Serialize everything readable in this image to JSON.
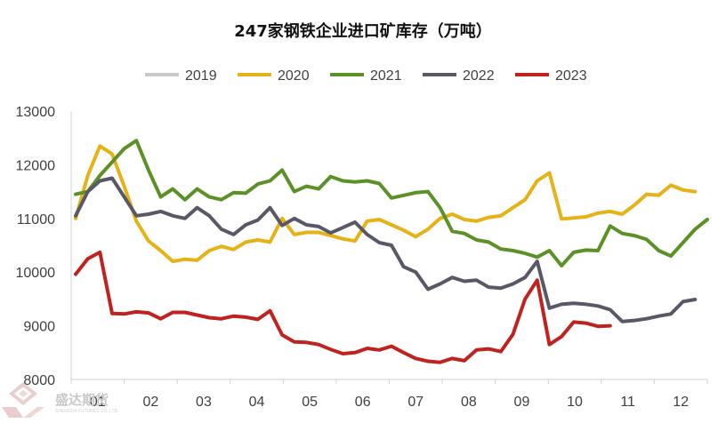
{
  "chart_data": {
    "type": "line",
    "title": "247家钢铁企业进口矿库存（万吨）",
    "xlabel": "",
    "ylabel": "",
    "ylim": [
      8000,
      13000
    ],
    "yticks": [
      8000,
      9000,
      10000,
      11000,
      12000,
      13000
    ],
    "x_tick_labels": [
      "01",
      "02",
      "03",
      "04",
      "05",
      "06",
      "07",
      "08",
      "09",
      "10",
      "11",
      "12"
    ],
    "week_range": [
      1,
      53
    ],
    "legend_position": "top-center",
    "grid": false,
    "series": [
      {
        "name": "2019",
        "color": "#c8c8c8",
        "points": []
      },
      {
        "name": "2020",
        "color": "#e5b217",
        "points": [
          [
            1,
            11000
          ],
          [
            2,
            11800
          ],
          [
            3,
            12350
          ],
          [
            4,
            12200
          ],
          [
            5,
            11600
          ],
          [
            6,
            10950
          ],
          [
            7,
            10580
          ],
          [
            8,
            10400
          ],
          [
            9,
            10200
          ],
          [
            10,
            10240
          ],
          [
            11,
            10220
          ],
          [
            12,
            10400
          ],
          [
            13,
            10480
          ],
          [
            14,
            10420
          ],
          [
            15,
            10560
          ],
          [
            16,
            10600
          ],
          [
            17,
            10560
          ],
          [
            18,
            11000
          ],
          [
            19,
            10700
          ],
          [
            20,
            10740
          ],
          [
            21,
            10740
          ],
          [
            22,
            10680
          ],
          [
            23,
            10620
          ],
          [
            24,
            10580
          ],
          [
            25,
            10950
          ],
          [
            26,
            10980
          ],
          [
            27,
            10880
          ],
          [
            28,
            10780
          ],
          [
            29,
            10660
          ],
          [
            30,
            10800
          ],
          [
            31,
            11000
          ],
          [
            32,
            11080
          ],
          [
            33,
            10980
          ],
          [
            34,
            10950
          ],
          [
            35,
            11020
          ],
          [
            36,
            11050
          ],
          [
            37,
            11200
          ],
          [
            38,
            11350
          ],
          [
            39,
            11700
          ],
          [
            40,
            11850
          ],
          [
            41,
            10990
          ],
          [
            42,
            11010
          ],
          [
            43,
            11030
          ],
          [
            44,
            11100
          ],
          [
            45,
            11130
          ],
          [
            46,
            11080
          ],
          [
            47,
            11250
          ],
          [
            48,
            11450
          ],
          [
            49,
            11430
          ],
          [
            50,
            11620
          ],
          [
            51,
            11530
          ],
          [
            52,
            11500
          ]
        ]
      },
      {
        "name": "2021",
        "color": "#5c9128",
        "points": [
          [
            1,
            11450
          ],
          [
            2,
            11500
          ],
          [
            3,
            11800
          ],
          [
            4,
            12050
          ],
          [
            5,
            12300
          ],
          [
            6,
            12450
          ],
          [
            7,
            11900
          ],
          [
            8,
            11400
          ],
          [
            9,
            11550
          ],
          [
            10,
            11350
          ],
          [
            11,
            11550
          ],
          [
            12,
            11400
          ],
          [
            13,
            11350
          ],
          [
            14,
            11480
          ],
          [
            15,
            11470
          ],
          [
            16,
            11640
          ],
          [
            17,
            11700
          ],
          [
            18,
            11900
          ],
          [
            19,
            11500
          ],
          [
            20,
            11600
          ],
          [
            21,
            11550
          ],
          [
            22,
            11780
          ],
          [
            23,
            11700
          ],
          [
            24,
            11680
          ],
          [
            25,
            11700
          ],
          [
            26,
            11650
          ],
          [
            27,
            11380
          ],
          [
            28,
            11430
          ],
          [
            29,
            11480
          ],
          [
            30,
            11500
          ],
          [
            31,
            11200
          ],
          [
            32,
            10760
          ],
          [
            33,
            10720
          ],
          [
            34,
            10600
          ],
          [
            35,
            10560
          ],
          [
            36,
            10430
          ],
          [
            37,
            10400
          ],
          [
            38,
            10350
          ],
          [
            39,
            10280
          ],
          [
            40,
            10400
          ],
          [
            41,
            10120
          ],
          [
            42,
            10370
          ],
          [
            43,
            10410
          ],
          [
            44,
            10400
          ],
          [
            45,
            10860
          ],
          [
            46,
            10720
          ],
          [
            47,
            10680
          ],
          [
            48,
            10610
          ],
          [
            49,
            10400
          ],
          [
            50,
            10300
          ],
          [
            51,
            10550
          ],
          [
            52,
            10800
          ],
          [
            53,
            10980
          ]
        ]
      },
      {
        "name": "2022",
        "color": "#5a5867",
        "points": [
          [
            1,
            11050
          ],
          [
            2,
            11500
          ],
          [
            3,
            11700
          ],
          [
            4,
            11750
          ],
          [
            5,
            11400
          ],
          [
            6,
            11050
          ],
          [
            7,
            11080
          ],
          [
            8,
            11130
          ],
          [
            9,
            11050
          ],
          [
            10,
            11000
          ],
          [
            11,
            11200
          ],
          [
            12,
            11050
          ],
          [
            13,
            10800
          ],
          [
            14,
            10700
          ],
          [
            15,
            10880
          ],
          [
            16,
            10970
          ],
          [
            17,
            11200
          ],
          [
            18,
            10870
          ],
          [
            19,
            11000
          ],
          [
            20,
            10880
          ],
          [
            21,
            10850
          ],
          [
            22,
            10730
          ],
          [
            23,
            10830
          ],
          [
            24,
            10930
          ],
          [
            25,
            10700
          ],
          [
            26,
            10550
          ],
          [
            27,
            10500
          ],
          [
            28,
            10100
          ],
          [
            29,
            10000
          ],
          [
            30,
            9680
          ],
          [
            31,
            9780
          ],
          [
            32,
            9900
          ],
          [
            33,
            9830
          ],
          [
            34,
            9850
          ],
          [
            35,
            9720
          ],
          [
            36,
            9700
          ],
          [
            37,
            9780
          ],
          [
            38,
            9900
          ],
          [
            39,
            10200
          ],
          [
            40,
            9330
          ],
          [
            41,
            9400
          ],
          [
            42,
            9420
          ],
          [
            43,
            9400
          ],
          [
            44,
            9370
          ],
          [
            45,
            9300
          ],
          [
            46,
            9080
          ],
          [
            47,
            9100
          ],
          [
            48,
            9130
          ],
          [
            49,
            9180
          ],
          [
            50,
            9220
          ],
          [
            51,
            9450
          ],
          [
            52,
            9490
          ]
        ]
      },
      {
        "name": "2023",
        "color": "#c0231f",
        "points": [
          [
            1,
            9960
          ],
          [
            2,
            10250
          ],
          [
            3,
            10370
          ],
          [
            4,
            9230
          ],
          [
            5,
            9220
          ],
          [
            6,
            9260
          ],
          [
            7,
            9240
          ],
          [
            8,
            9130
          ],
          [
            9,
            9250
          ],
          [
            10,
            9250
          ],
          [
            11,
            9200
          ],
          [
            12,
            9150
          ],
          [
            13,
            9130
          ],
          [
            14,
            9180
          ],
          [
            15,
            9160
          ],
          [
            16,
            9120
          ],
          [
            17,
            9280
          ],
          [
            18,
            8830
          ],
          [
            19,
            8700
          ],
          [
            20,
            8690
          ],
          [
            21,
            8650
          ],
          [
            22,
            8560
          ],
          [
            23,
            8480
          ],
          [
            24,
            8500
          ],
          [
            25,
            8580
          ],
          [
            26,
            8550
          ],
          [
            27,
            8620
          ],
          [
            28,
            8500
          ],
          [
            29,
            8390
          ],
          [
            30,
            8340
          ],
          [
            31,
            8320
          ],
          [
            32,
            8390
          ],
          [
            33,
            8350
          ],
          [
            34,
            8550
          ],
          [
            35,
            8570
          ],
          [
            36,
            8520
          ],
          [
            37,
            8840
          ],
          [
            38,
            9500
          ],
          [
            39,
            9850
          ],
          [
            40,
            8650
          ],
          [
            41,
            8800
          ],
          [
            42,
            9070
          ],
          [
            43,
            9050
          ],
          [
            44,
            8990
          ],
          [
            45,
            9000
          ]
        ]
      }
    ]
  },
  "watermark": {
    "text": "盛达期货",
    "subtext": "SHENGDA FUTURES CO.,LTD"
  }
}
